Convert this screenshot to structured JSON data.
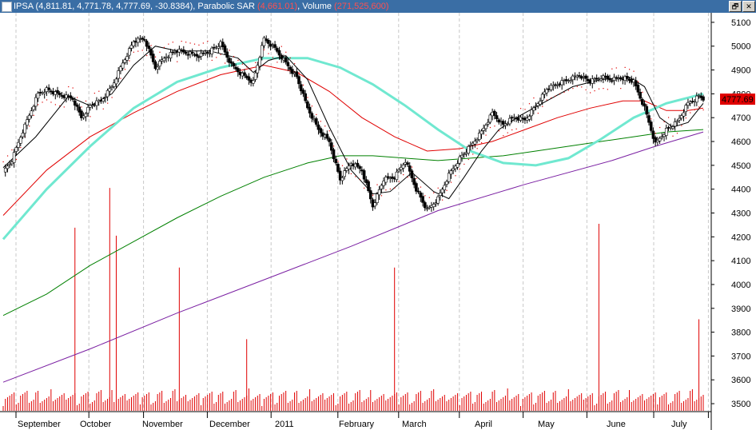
{
  "window": {
    "symbol": "IPSA",
    "ohlc": "(4,811.81, 4,771.78, 4,777.69, -30.8384)",
    "indicator_name": "Parabolic SAR",
    "indicator_value": "(4,661.01)",
    "volume_name": "Volume",
    "volume_value": "(271,525,600)",
    "restore_button": "🗗",
    "close_button": "✕"
  },
  "chart_data": {
    "type": "candlestick",
    "title": "IPSA",
    "last_price_label": "4777.69",
    "y_ticks": [
      "5100",
      "5000",
      "4900",
      "4800",
      "4700",
      "4600",
      "4500",
      "4400",
      "4300",
      "4200",
      "4100",
      "4000",
      "3900",
      "3800",
      "3700",
      "3600",
      "3500"
    ],
    "ylim": [
      3470,
      5140
    ],
    "x_labels": [
      "September",
      "October",
      "November",
      "December",
      "2011",
      "February",
      "March",
      "April",
      "May",
      "June",
      "July"
    ],
    "colors": {
      "up": "#ffffff",
      "down": "#000000",
      "ma_short": "#000000",
      "ma_mid": "#e00000",
      "ma_green": "#008000",
      "ma_purple": "#7a1fa2",
      "ma_cyan": "#70e8d0",
      "sar": "#e00000",
      "volume": "#e00000",
      "last_price_bg": "#e00000",
      "grid": "#c8c8c8"
    },
    "close_points": [
      [
        0,
        4470
      ],
      [
        4,
        4520
      ],
      [
        8,
        4620
      ],
      [
        12,
        4710
      ],
      [
        16,
        4800
      ],
      [
        20,
        4820
      ],
      [
        24,
        4800
      ],
      [
        28,
        4790
      ],
      [
        32,
        4780
      ],
      [
        36,
        4700
      ],
      [
        40,
        4750
      ],
      [
        45,
        4770
      ],
      [
        50,
        4830
      ],
      [
        55,
        4930
      ],
      [
        60,
        5020
      ],
      [
        65,
        5030
      ],
      [
        70,
        4910
      ],
      [
        75,
        4960
      ],
      [
        80,
        4980
      ],
      [
        85,
        4970
      ],
      [
        90,
        4960
      ],
      [
        95,
        4980
      ],
      [
        100,
        5010
      ],
      [
        105,
        4920
      ],
      [
        110,
        4880
      ],
      [
        115,
        4850
      ],
      [
        120,
        5030
      ],
      [
        125,
        4990
      ],
      [
        130,
        4930
      ],
      [
        135,
        4870
      ],
      [
        140,
        4740
      ],
      [
        145,
        4650
      ],
      [
        150,
        4600
      ],
      [
        155,
        4440
      ],
      [
        160,
        4510
      ],
      [
        165,
        4480
      ],
      [
        170,
        4330
      ],
      [
        175,
        4440
      ],
      [
        180,
        4450
      ],
      [
        185,
        4520
      ],
      [
        190,
        4400
      ],
      [
        195,
        4310
      ],
      [
        200,
        4360
      ],
      [
        205,
        4460
      ],
      [
        210,
        4530
      ],
      [
        215,
        4580
      ],
      [
        220,
        4640
      ],
      [
        225,
        4720
      ],
      [
        230,
        4670
      ],
      [
        235,
        4700
      ],
      [
        240,
        4690
      ],
      [
        245,
        4750
      ],
      [
        250,
        4820
      ],
      [
        255,
        4840
      ],
      [
        260,
        4860
      ],
      [
        265,
        4880
      ],
      [
        270,
        4850
      ],
      [
        275,
        4870
      ],
      [
        280,
        4860
      ],
      [
        285,
        4870
      ],
      [
        290,
        4850
      ],
      [
        295,
        4740
      ],
      [
        300,
        4590
      ],
      [
        305,
        4650
      ],
      [
        310,
        4680
      ],
      [
        315,
        4760
      ],
      [
        320,
        4790
      ],
      [
        322,
        4778
      ]
    ],
    "ma_short": [
      [
        0,
        4490
      ],
      [
        15,
        4620
      ],
      [
        30,
        4790
      ],
      [
        40,
        4750
      ],
      [
        50,
        4800
      ],
      [
        60,
        4920
      ],
      [
        70,
        5000
      ],
      [
        80,
        4980
      ],
      [
        95,
        4980
      ],
      [
        108,
        4950
      ],
      [
        115,
        4890
      ],
      [
        122,
        4940
      ],
      [
        130,
        4960
      ],
      [
        140,
        4860
      ],
      [
        150,
        4660
      ],
      [
        160,
        4480
      ],
      [
        170,
        4380
      ],
      [
        178,
        4390
      ],
      [
        188,
        4470
      ],
      [
        198,
        4390
      ],
      [
        205,
        4360
      ],
      [
        212,
        4450
      ],
      [
        220,
        4560
      ],
      [
        228,
        4650
      ],
      [
        238,
        4710
      ],
      [
        250,
        4770
      ],
      [
        262,
        4830
      ],
      [
        275,
        4860
      ],
      [
        288,
        4870
      ],
      [
        295,
        4830
      ],
      [
        302,
        4700
      ],
      [
        308,
        4660
      ],
      [
        315,
        4680
      ],
      [
        322,
        4760
      ]
    ],
    "ma_mid": [
      [
        0,
        4290
      ],
      [
        20,
        4480
      ],
      [
        40,
        4620
      ],
      [
        60,
        4720
      ],
      [
        80,
        4810
      ],
      [
        100,
        4880
      ],
      [
        120,
        4920
      ],
      [
        135,
        4890
      ],
      [
        150,
        4810
      ],
      [
        165,
        4700
      ],
      [
        180,
        4620
      ],
      [
        195,
        4560
      ],
      [
        210,
        4570
      ],
      [
        225,
        4600
      ],
      [
        240,
        4650
      ],
      [
        255,
        4700
      ],
      [
        270,
        4740
      ],
      [
        285,
        4770
      ],
      [
        295,
        4770
      ],
      [
        305,
        4730
      ],
      [
        315,
        4730
      ],
      [
        322,
        4740
      ]
    ],
    "ma_cyan": [
      [
        0,
        4190
      ],
      [
        20,
        4400
      ],
      [
        40,
        4580
      ],
      [
        60,
        4740
      ],
      [
        80,
        4850
      ],
      [
        100,
        4910
      ],
      [
        120,
        4950
      ],
      [
        140,
        4950
      ],
      [
        155,
        4910
      ],
      [
        170,
        4840
      ],
      [
        185,
        4750
      ],
      [
        200,
        4650
      ],
      [
        215,
        4560
      ],
      [
        230,
        4510
      ],
      [
        245,
        4500
      ],
      [
        260,
        4530
      ],
      [
        275,
        4610
      ],
      [
        290,
        4700
      ],
      [
        305,
        4760
      ],
      [
        322,
        4800
      ]
    ],
    "ma_green": [
      [
        0,
        3870
      ],
      [
        20,
        3960
      ],
      [
        40,
        4080
      ],
      [
        60,
        4180
      ],
      [
        80,
        4280
      ],
      [
        100,
        4370
      ],
      [
        120,
        4450
      ],
      [
        140,
        4510
      ],
      [
        155,
        4540
      ],
      [
        170,
        4540
      ],
      [
        185,
        4530
      ],
      [
        200,
        4520
      ],
      [
        215,
        4530
      ],
      [
        230,
        4540
      ],
      [
        245,
        4560
      ],
      [
        260,
        4580
      ],
      [
        275,
        4600
      ],
      [
        290,
        4620
      ],
      [
        305,
        4640
      ],
      [
        322,
        4650
      ]
    ],
    "ma_purple": [
      [
        0,
        3590
      ],
      [
        40,
        3730
      ],
      [
        80,
        3880
      ],
      [
        120,
        4020
      ],
      [
        160,
        4160
      ],
      [
        200,
        4310
      ],
      [
        240,
        4420
      ],
      [
        280,
        4520
      ],
      [
        300,
        4580
      ],
      [
        322,
        4640
      ]
    ],
    "vol_spikes": [
      [
        33,
        0.46
      ],
      [
        49,
        0.56
      ],
      [
        52,
        0.44
      ],
      [
        81,
        0.36
      ],
      [
        112,
        0.18
      ],
      [
        180,
        0.36
      ],
      [
        274,
        0.47
      ],
      [
        320,
        0.23
      ]
    ]
  }
}
